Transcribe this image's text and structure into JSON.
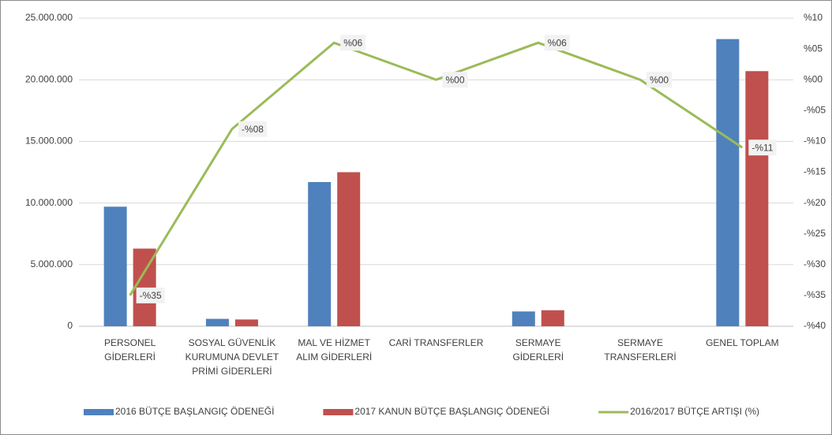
{
  "chart_data": {
    "type": "bar_line",
    "categories": [
      "PERSONEL GİDERLERİ",
      "SOSYAL GÜVENLİK KURUMUNA DEVLET PRİMİ GİDERLERİ",
      "MAL VE HİZMET ALIM GİDERLERİ",
      "CARİ TRANSFERLER",
      "SERMAYE GİDERLERİ",
      "SERMAYE TRANSFERLERİ",
      "GENEL TOPLAM"
    ],
    "series": [
      {
        "name": "2016 BÜTÇE BAŞLANGIÇ ÖDENEĞİ",
        "type": "bar",
        "color": "#4f81bd",
        "values": [
          9700000,
          600000,
          11700000,
          0,
          1200000,
          0,
          23300000
        ]
      },
      {
        "name": "2017 KANUN BÜTÇE BAŞLANGIÇ ÖDENEĞİ",
        "type": "bar",
        "color": "#c0504d",
        "values": [
          6300000,
          550000,
          12500000,
          0,
          1300000,
          0,
          20700000
        ]
      },
      {
        "name": "2016/2017 BÜTÇE ARTIŞI (%)",
        "type": "line",
        "axis": "y2",
        "color": "#9bbb59",
        "values": [
          -35,
          -8,
          6,
          0,
          6,
          0,
          -11
        ],
        "value_labels": [
          "-%35",
          "-%08",
          "%06",
          "%00",
          "%06",
          "%00",
          "-%11"
        ]
      }
    ],
    "ylim": [
      0,
      25000000
    ],
    "yticks": [
      0,
      {
        "value": 5000000,
        "label": "5.000.000"
      },
      {
        "value": 10000000,
        "label": "10.000.000"
      },
      {
        "value": 15000000,
        "label": "15.000.000"
      },
      {
        "value": 20000000,
        "label": "20.000.000"
      },
      {
        "value": 25000000,
        "label": "25.000.000"
      }
    ],
    "y2lim": [
      -40,
      10
    ],
    "y2ticks": [
      {
        "value": -40,
        "label": "-%40"
      },
      {
        "value": -35,
        "label": "-%35"
      },
      {
        "value": -30,
        "label": "-%30"
      },
      {
        "value": -25,
        "label": "-%25"
      },
      {
        "value": -20,
        "label": "-%20"
      },
      {
        "value": -15,
        "label": "-%15"
      },
      {
        "value": -10,
        "label": "-%10"
      },
      {
        "value": -5,
        "label": "-%05"
      },
      {
        "value": 0,
        "label": "%00"
      },
      {
        "value": 5,
        "label": "%05"
      },
      {
        "value": 10,
        "label": "%10"
      }
    ],
    "grid": true,
    "legend": "bottom"
  }
}
